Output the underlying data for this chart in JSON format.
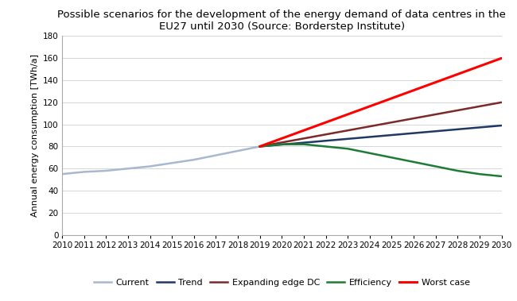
{
  "title": "Possible scenarios for the development of the energy demand of data centres in the\nEU27 until 2030 (Source: Borderstep Institute)",
  "ylabel": "Annual energy consumption [TWh/a]",
  "xlim": [
    2010,
    2030
  ],
  "ylim": [
    0,
    180
  ],
  "yticks": [
    0,
    20,
    40,
    60,
    80,
    100,
    120,
    140,
    160,
    180
  ],
  "xticks": [
    2010,
    2011,
    2012,
    2013,
    2014,
    2015,
    2016,
    2017,
    2018,
    2019,
    2020,
    2021,
    2022,
    2023,
    2024,
    2025,
    2026,
    2027,
    2028,
    2029,
    2030
  ],
  "series": {
    "Current": {
      "x": [
        2010,
        2011,
        2012,
        2013,
        2014,
        2015,
        2016,
        2017,
        2018,
        2019
      ],
      "y": [
        55,
        57,
        58,
        60,
        62,
        65,
        68,
        72,
        76,
        80
      ],
      "color": "#a8b8d0",
      "linewidth": 1.8
    },
    "Trend": {
      "x": [
        2019,
        2030
      ],
      "y": [
        80,
        99
      ],
      "color": "#1f3864",
      "linewidth": 1.8
    },
    "Expanding edge DC": {
      "x": [
        2019,
        2030
      ],
      "y": [
        80,
        120
      ],
      "color": "#7b2929",
      "linewidth": 1.8
    },
    "Efficiency": {
      "x": [
        2019,
        2020,
        2021,
        2022,
        2023,
        2024,
        2025,
        2026,
        2027,
        2028,
        2029,
        2030
      ],
      "y": [
        80,
        82,
        82,
        80,
        78,
        74,
        70,
        66,
        62,
        58,
        55,
        53
      ],
      "color": "#1e7b34",
      "linewidth": 1.8
    },
    "Worst case": {
      "x": [
        2019,
        2030
      ],
      "y": [
        80,
        160
      ],
      "color": "#ff0000",
      "linewidth": 2.2
    }
  },
  "legend_order": [
    "Current",
    "Trend",
    "Expanding edge DC",
    "Efficiency",
    "Worst case"
  ],
  "background_color": "#ffffff",
  "title_fontsize": 9.5,
  "ylabel_fontsize": 8,
  "tick_fontsize": 7.5,
  "legend_fontsize": 8
}
